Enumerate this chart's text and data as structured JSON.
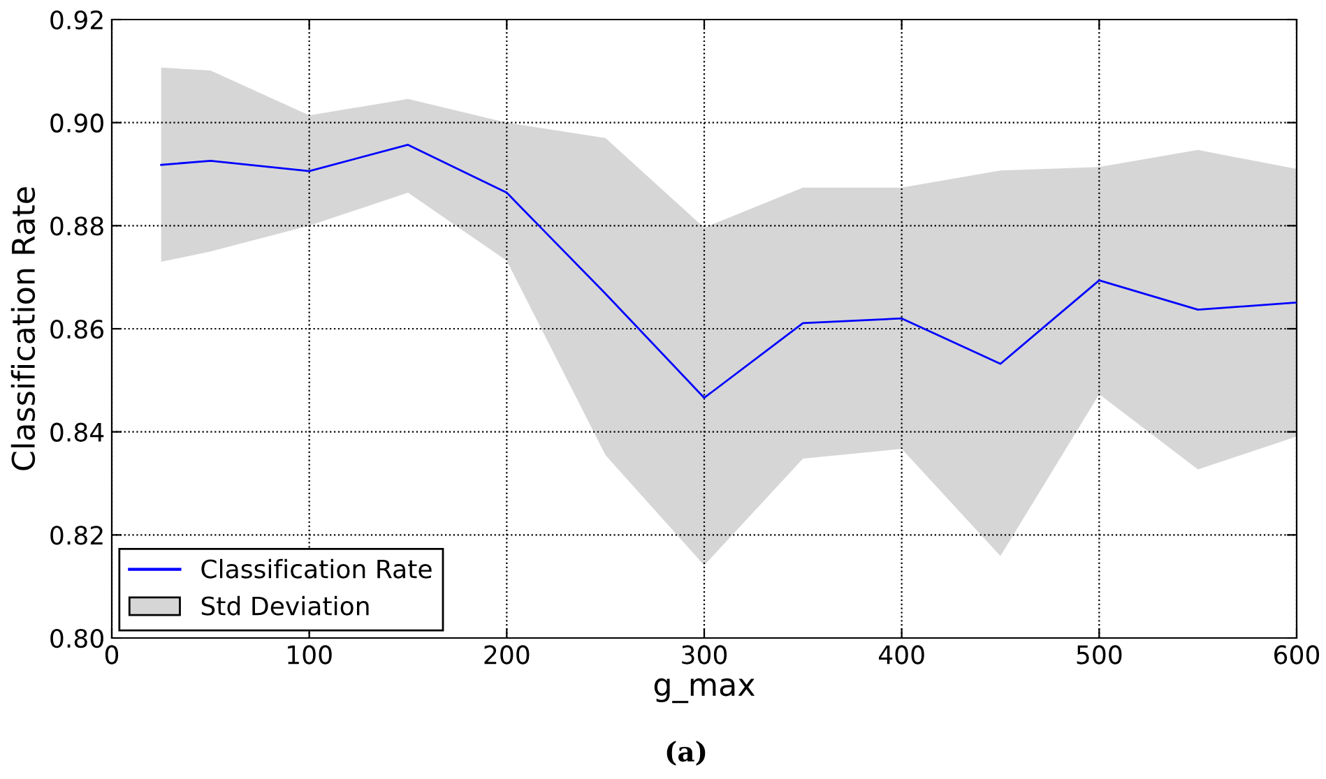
{
  "chart_data": {
    "type": "line",
    "xlabel": "g_max",
    "ylabel": "Classification Rate",
    "x": [
      25,
      50,
      100,
      150,
      200,
      250,
      300,
      350,
      400,
      450,
      500,
      550,
      600
    ],
    "series": [
      {
        "name": "Classification Rate",
        "color": "#0000ff",
        "values": [
          0.8918,
          0.8926,
          0.8906,
          0.8957,
          0.8864,
          0.8668,
          0.8466,
          0.8611,
          0.862,
          0.8532,
          0.8694,
          0.8637,
          0.8651
        ],
        "lower": [
          0.873,
          0.875,
          0.88,
          0.8864,
          0.8732,
          0.8355,
          0.8141,
          0.8348,
          0.8367,
          0.8159,
          0.8473,
          0.8327,
          0.8391
        ],
        "upper": [
          0.9107,
          0.9101,
          0.9014,
          0.9046,
          0.9,
          0.897,
          0.8796,
          0.8874,
          0.8874,
          0.8907,
          0.8914,
          0.8947,
          0.891
        ]
      },
      {
        "name": "Std Deviation",
        "type": "area",
        "color": "#d6d6d6",
        "values": [
          null,
          null,
          null,
          null,
          null,
          null,
          null,
          null,
          null,
          null,
          null,
          null,
          null
        ]
      }
    ],
    "xlim": [
      0,
      600
    ],
    "xticks": [
      0,
      100,
      200,
      300,
      400,
      500,
      600
    ],
    "ylim": [
      0.8,
      0.92
    ],
    "yticks": [
      {
        "value": 0.8,
        "label": "0.80"
      },
      {
        "value": 0.82,
        "label": "0.82"
      },
      {
        "value": 0.84,
        "label": "0.84"
      },
      {
        "value": 0.86,
        "label": "0.86"
      },
      {
        "value": 0.88,
        "label": "0.88"
      },
      {
        "value": 0.9,
        "label": "0.90"
      },
      {
        "value": 0.92,
        "label": "0.92"
      }
    ],
    "grid": true,
    "legend": "bottom left",
    "line_style": "solid",
    "annotations": [
      "(a)"
    ]
  }
}
